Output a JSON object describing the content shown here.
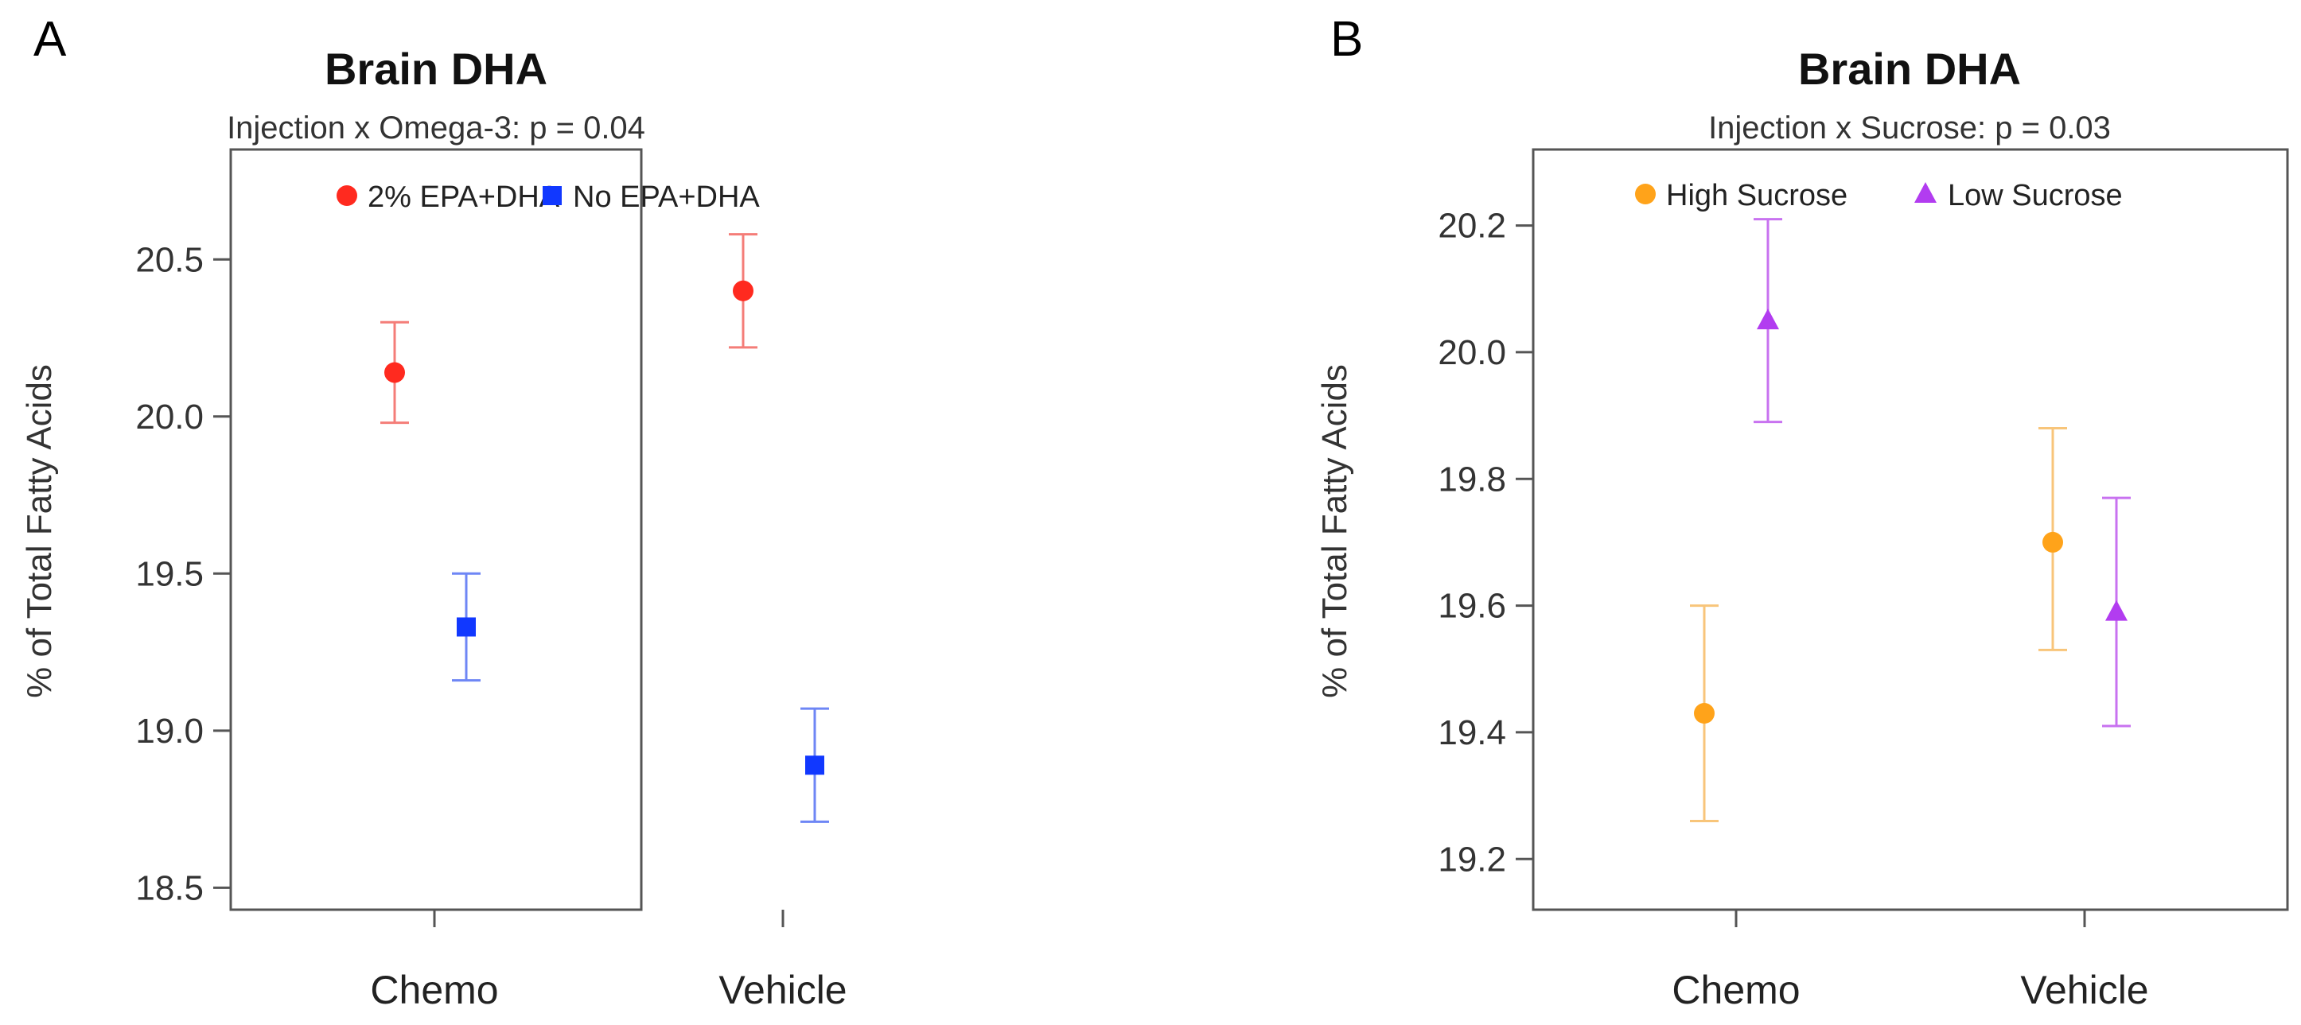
{
  "chart_data": [
    {
      "panel_label": "A",
      "type": "scatter",
      "title": "Brain DHA",
      "subtitle": "Injection x Omega-3: p = 0.04",
      "xlabel": "",
      "ylabel": "% of Total Fatty Acids",
      "categories": [
        "Chemo",
        "Vehicle"
      ],
      "ylim": [
        18.43,
        20.85
      ],
      "yticks": [
        18.5,
        19.0,
        19.5,
        20.0,
        20.5
      ],
      "ytick_labels": [
        "18.5",
        "19.0",
        "19.5",
        "20.0",
        "20.5"
      ],
      "legend_position": "top",
      "series": [
        {
          "name": "2% EPA+DHA",
          "marker": "circle",
          "color": "#ff2a1f",
          "errcolor": "#f47d78",
          "values": [
            20.14,
            20.4
          ],
          "lower": [
            19.98,
            20.22
          ],
          "upper": [
            20.3,
            20.58
          ]
        },
        {
          "name": "No EPA+DHA",
          "marker": "square",
          "color": "#1138ff",
          "errcolor": "#6e86f5",
          "values": [
            19.33,
            18.89
          ],
          "lower": [
            19.16,
            18.71
          ],
          "upper": [
            19.5,
            19.07
          ]
        }
      ]
    },
    {
      "panel_label": "B",
      "type": "scatter",
      "title": "Brain DHA",
      "subtitle": "Injection x Sucrose: p = 0.03",
      "xlabel": "",
      "ylabel": "% of Total Fatty Acids",
      "categories": [
        "Chemo",
        "Vehicle"
      ],
      "ylim": [
        19.12,
        20.32
      ],
      "yticks": [
        19.2,
        19.4,
        19.6,
        19.8,
        20.0,
        20.2
      ],
      "ytick_labels": [
        "19.2",
        "19.4",
        "19.6",
        "19.8",
        "20.0",
        "20.2"
      ],
      "legend_position": "top",
      "series": [
        {
          "name": "High Sucrose",
          "marker": "circle",
          "color": "#ffa31a",
          "errcolor": "#f8c57a",
          "values": [
            19.43,
            19.7
          ],
          "lower": [
            19.26,
            19.53
          ],
          "upper": [
            19.6,
            19.88
          ]
        },
        {
          "name": "Low Sucrose",
          "marker": "triangle",
          "color": "#b23cf0",
          "errcolor": "#c872f0",
          "values": [
            20.05,
            19.59
          ],
          "lower": [
            19.89,
            19.41
          ],
          "upper": [
            20.21,
            19.77
          ]
        }
      ]
    }
  ]
}
